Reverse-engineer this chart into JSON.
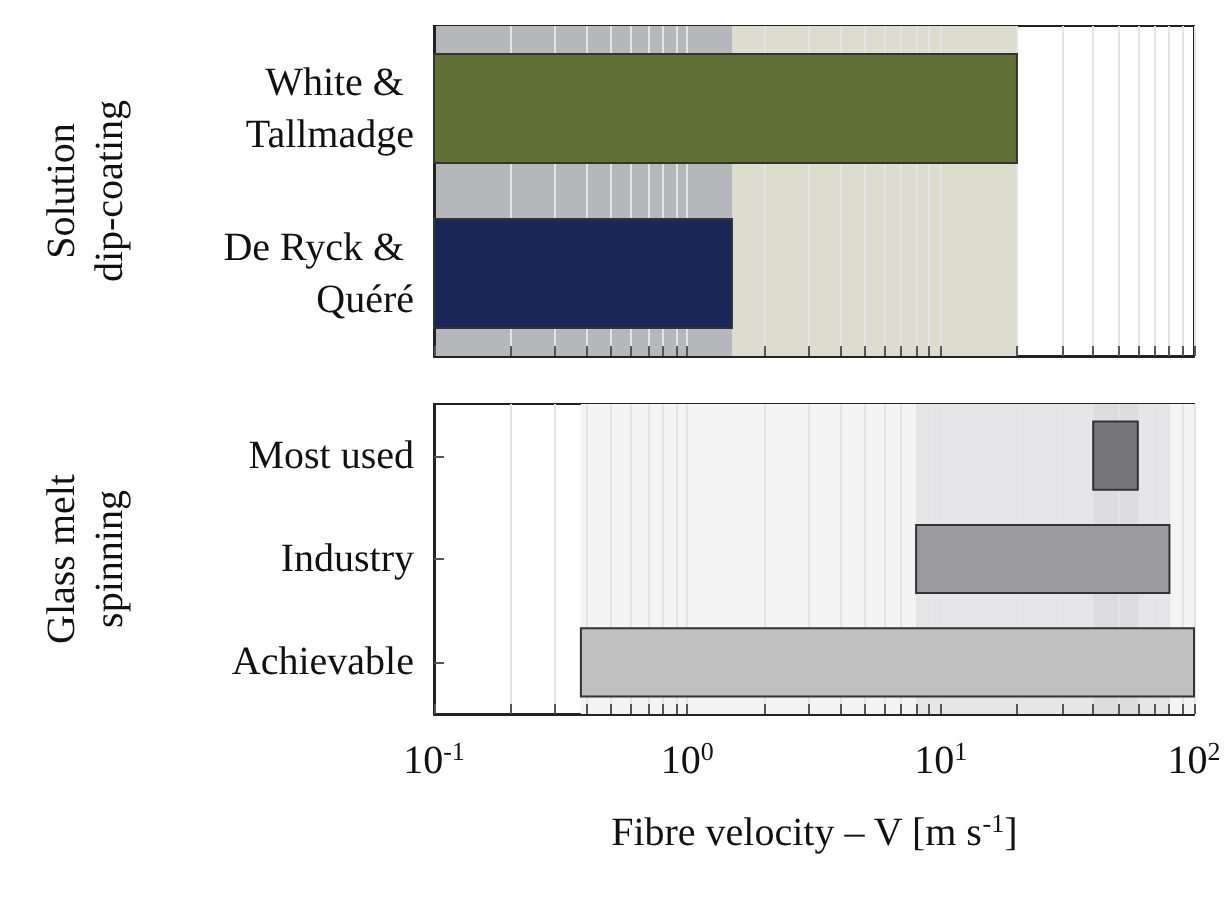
{
  "chart_data": [
    {
      "type": "bar",
      "orientation": "horizontal",
      "ylabel": "Solution dip-coating",
      "categories": [
        "White & Tallmadge",
        "De Ryck & Quéré"
      ],
      "base": [
        0.1,
        0.1
      ],
      "values": [
        19.9,
        1.4
      ],
      "colors": [
        "#5e7034",
        "#182858"
      ],
      "bands": [
        {
          "axis": "x",
          "from": 0.1,
          "to": 20,
          "color": "#dcdccf"
        },
        {
          "axis": "x",
          "from": 0.1,
          "to": 1.5,
          "color": "#b5b7ba"
        }
      ],
      "log": "x",
      "grid": "x",
      "tick_labels": "y",
      "xlim": [
        0.1,
        100
      ],
      "xticks": [
        {
          "value": 0.1,
          "label": "10$^{-1}$"
        },
        {
          "value": 0.2,
          "label": null
        },
        {
          "value": 0.3,
          "label": null
        },
        {
          "value": 0.4,
          "label": null
        },
        {
          "value": 0.5,
          "label": null
        },
        {
          "value": 0.6,
          "label": null
        },
        {
          "value": 0.7,
          "label": null
        },
        {
          "value": 0.8,
          "label": null
        },
        {
          "value": 0.9,
          "label": null
        },
        {
          "value": 1,
          "label": "10$^{0}$"
        },
        {
          "value": 2,
          "label": null
        },
        {
          "value": 3,
          "label": null
        },
        {
          "value": 4,
          "label": null
        },
        {
          "value": 5,
          "label": null
        },
        {
          "value": 6,
          "label": null
        },
        {
          "value": 7,
          "label": null
        },
        {
          "value": 8,
          "label": null
        },
        {
          "value": 9,
          "label": null
        },
        {
          "value": 10,
          "label": "10$^{1}$"
        },
        {
          "value": 20,
          "label": null
        },
        {
          "value": 30,
          "label": null
        },
        {
          "value": 40,
          "label": null
        },
        {
          "value": 50,
          "label": null
        },
        {
          "value": 60,
          "label": null
        },
        {
          "value": 70,
          "label": null
        },
        {
          "value": 80,
          "label": null
        },
        {
          "value": 90,
          "label": null
        },
        {
          "value": 100,
          "label": "10$^{2}$"
        }
      ]
    },
    {
      "type": "bar",
      "orientation": "horizontal",
      "ylabel": "Glass melt spinning",
      "xlabel": "Fibre velocity – V [m s$^{-1}$]",
      "categories": [
        "Most used",
        "Industry",
        "Achievable"
      ],
      "base": [
        40,
        8,
        0.38
      ],
      "values": [
        20,
        72,
        99.62
      ],
      "colors": [
        "#777779",
        "#9c9ca0",
        "#c0c0c0"
      ],
      "bands": [
        {
          "axis": "x",
          "from": 0.38,
          "to": 100,
          "color": "#f4f4f4"
        },
        {
          "axis": "x",
          "from": 8,
          "to": 80,
          "color": "#e6e6e8"
        },
        {
          "axis": "x",
          "from": 40,
          "to": 60,
          "color": "#dcdcde"
        }
      ],
      "log": "x",
      "grid": "x",
      "xlim": [
        0.1,
        100
      ],
      "xticks": [
        {
          "value": 0.1,
          "label": "10$^{-1}$"
        },
        {
          "value": 0.2,
          "label": null
        },
        {
          "value": 0.3,
          "label": null
        },
        {
          "value": 0.4,
          "label": null
        },
        {
          "value": 0.5,
          "label": null
        },
        {
          "value": 0.6,
          "label": null
        },
        {
          "value": 0.7,
          "label": null
        },
        {
          "value": 0.8,
          "label": null
        },
        {
          "value": 0.9,
          "label": null
        },
        {
          "value": 1,
          "label": "10$^{0}$"
        },
        {
          "value": 2,
          "label": null
        },
        {
          "value": 3,
          "label": null
        },
        {
          "value": 4,
          "label": null
        },
        {
          "value": 5,
          "label": null
        },
        {
          "value": 6,
          "label": null
        },
        {
          "value": 7,
          "label": null
        },
        {
          "value": 8,
          "label": null
        },
        {
          "value": 9,
          "label": null
        },
        {
          "value": 10,
          "label": "10$^{1}$"
        },
        {
          "value": 20,
          "label": null
        },
        {
          "value": 30,
          "label": null
        },
        {
          "value": 40,
          "label": null
        },
        {
          "value": 50,
          "label": null
        },
        {
          "value": 60,
          "label": null
        },
        {
          "value": 70,
          "label": null
        },
        {
          "value": 80,
          "label": null
        },
        {
          "value": 90,
          "label": null
        },
        {
          "value": 100,
          "label": "10$^{2}$"
        }
      ]
    }
  ]
}
